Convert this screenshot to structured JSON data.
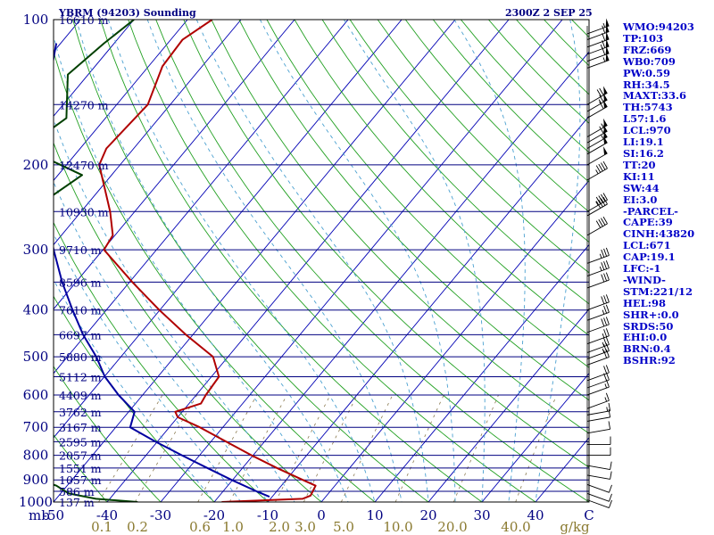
{
  "header": {
    "title": "YBRM (94203) Sounding",
    "time": "2300Z  2 SEP 25"
  },
  "indices": [
    "WMO:94203",
    "TP:103",
    "FRZ:669",
    "WB0:709",
    "PW:0.59",
    "RH:34.5",
    "MAXT:33.6",
    "TH:5743",
    "L57:1.6",
    "LCL:970",
    "LI:19.1",
    "SI:16.2",
    "TT:20",
    "KI:11",
    "SW:44",
    "EI:3.0",
    "-PARCEL-",
    "CAPE:39",
    "CINH:43820",
    "LCL:671",
    "CAP:19.1",
    "LFC:-1",
    "-WIND-",
    "STM:221/12",
    "HEL:98",
    "SHR+:0.0",
    "SRDS:50",
    "EHI:0.0",
    "BRN:0.4",
    "BSHR:92"
  ],
  "chart_data": {
    "type": "line",
    "title": "YBRM (94203) Sounding",
    "xlabel": "",
    "ylabel": "mb",
    "x_axis": {
      "tick_labels": [
        "-50",
        "-40",
        "-30",
        "-20",
        "-10",
        "0",
        "10",
        "20",
        "30",
        "40",
        "C"
      ],
      "tick_values": [
        -50,
        -40,
        -30,
        -20,
        -10,
        0,
        10,
        20,
        30,
        40
      ],
      "unit_label": "C",
      "xlim": [
        -50,
        50
      ]
    },
    "mixing_ratio_axis": {
      "unit_label": "g/kg",
      "tick_labels": [
        "0.1",
        "0.2",
        "0.6",
        "1.0",
        "2.0",
        "3.0",
        "5.0",
        "10.0",
        "20.0",
        "40.0"
      ]
    },
    "y_axis": {
      "scale": "log",
      "ylim": [
        1000,
        100
      ],
      "tick_labels": [
        "100",
        "200",
        "300",
        "400",
        "500",
        "600",
        "700",
        "800",
        "900",
        "1000"
      ],
      "tick_values": [
        100,
        200,
        300,
        400,
        500,
        600,
        700,
        800,
        900,
        1000
      ]
    },
    "height_levels": [
      {
        "p": 100,
        "label": "16610 m"
      },
      {
        "p": 150,
        "label": "14270 m"
      },
      {
        "p": 200,
        "label": "12470 m"
      },
      {
        "p": 250,
        "label": "10930 m"
      },
      {
        "p": 300,
        "label": "9710 m"
      },
      {
        "p": 350,
        "label": "8596 m"
      },
      {
        "p": 400,
        "label": "7610 m"
      },
      {
        "p": 450,
        "label": "6697 m"
      },
      {
        "p": 500,
        "label": "5880 m"
      },
      {
        "p": 550,
        "label": "5112 m"
      },
      {
        "p": 600,
        "label": "4409 m"
      },
      {
        "p": 650,
        "label": "3762 m"
      },
      {
        "p": 700,
        "label": "3167 m"
      },
      {
        "p": 750,
        "label": "2595 m"
      },
      {
        "p": 800,
        "label": "2057 m"
      },
      {
        "p": 850,
        "label": "1551 m"
      },
      {
        "p": 900,
        "label": "1057 m"
      },
      {
        "p": 950,
        "label": "586 m"
      },
      {
        "p": 1000,
        "label": "137 m"
      }
    ],
    "series": [
      {
        "role": "temperature",
        "color": "#b00000",
        "points": [
          {
            "p": 1000,
            "t": -18.6
          },
          {
            "p": 985,
            "t": -4.0
          },
          {
            "p": 970,
            "t": -3.0
          },
          {
            "p": 925,
            "t": -3.6
          },
          {
            "p": 900,
            "t": -6.9
          },
          {
            "p": 850,
            "t": -13.6
          },
          {
            "p": 800,
            "t": -20.3
          },
          {
            "p": 750,
            "t": -27.1
          },
          {
            "p": 700,
            "t": -34.3
          },
          {
            "p": 667,
            "t": -40.0
          },
          {
            "p": 650,
            "t": -41.3
          },
          {
            "p": 625,
            "t": -37.8
          },
          {
            "p": 600,
            "t": -38.2
          },
          {
            "p": 550,
            "t": -38.6
          },
          {
            "p": 500,
            "t": -42.8
          },
          {
            "p": 450,
            "t": -51.3
          },
          {
            "p": 400,
            "t": -60.1
          },
          {
            "p": 350,
            "t": -69.5
          },
          {
            "p": 300,
            "t": -79.8
          },
          {
            "p": 280,
            "t": -80.4
          },
          {
            "p": 250,
            "t": -84.6
          },
          {
            "p": 200,
            "t": -93.9
          },
          {
            "p": 185,
            "t": -95.1
          },
          {
            "p": 150,
            "t": -94.2
          },
          {
            "p": 125,
            "t": -97.4
          },
          {
            "p": 110,
            "t": -97.8
          },
          {
            "p": 100,
            "t": -95.4
          }
        ]
      },
      {
        "role": "dewpoint",
        "color": "#004000",
        "points": [
          {
            "p": 1000,
            "t": -34.3
          },
          {
            "p": 985,
            "t": -42.6
          },
          {
            "p": 960,
            "t": -48.5
          },
          {
            "p": 925,
            "t": -52.0
          },
          {
            "p": 880,
            "t": -59.0
          },
          {
            "p": 830,
            "t": -65.3
          },
          {
            "p": 780,
            "t": -69.7
          },
          {
            "p": 730,
            "t": -72.2
          },
          {
            "p": 700,
            "t": -76.1
          },
          {
            "p": 660,
            "t": -80.5
          },
          {
            "p": 650,
            "t": -106.6
          },
          {
            "p": 600,
            "t": -105.2
          },
          {
            "p": 500,
            "t": -103.2
          },
          {
            "p": 400,
            "t": -103.8
          },
          {
            "p": 310,
            "t": -91.8
          },
          {
            "p": 270,
            "t": -101.5
          },
          {
            "p": 210,
            "t": -95.5
          },
          {
            "p": 195,
            "t": -104.1
          },
          {
            "p": 180,
            "t": -109.8
          },
          {
            "p": 160,
            "t": -107.3
          },
          {
            "p": 130,
            "t": -113.8
          },
          {
            "p": 112,
            "t": -111.9
          },
          {
            "p": 100,
            "t": -110.0
          }
        ]
      },
      {
        "role": "parcel",
        "color": "#0000a0",
        "points": [
          {
            "p": 975,
            "t": -10.5
          },
          {
            "p": 950,
            "t": -13.8
          },
          {
            "p": 900,
            "t": -20.2
          },
          {
            "p": 850,
            "t": -26.6
          },
          {
            "p": 800,
            "t": -33.3
          },
          {
            "p": 750,
            "t": -40.3
          },
          {
            "p": 700,
            "t": -47.3
          },
          {
            "p": 650,
            "t": -48.9
          },
          {
            "p": 600,
            "t": -54.5
          },
          {
            "p": 550,
            "t": -59.9
          },
          {
            "p": 500,
            "t": -64.6
          },
          {
            "p": 450,
            "t": -70.5
          },
          {
            "p": 400,
            "t": -76.3
          },
          {
            "p": 350,
            "t": -82.6
          },
          {
            "p": 300,
            "t": -89.2
          },
          {
            "p": 250,
            "t": -96.5
          },
          {
            "p": 200,
            "t": -104.3
          },
          {
            "p": 150,
            "t": -113.4
          },
          {
            "p": 112,
            "t": -120.8
          }
        ]
      }
    ],
    "wind_barbs": [
      {
        "p": 107,
        "dir": 290,
        "spd": 55
      },
      {
        "p": 110,
        "dir": 290,
        "spd": 60
      },
      {
        "p": 114,
        "dir": 290,
        "spd": 60
      },
      {
        "p": 118,
        "dir": 290,
        "spd": 65
      },
      {
        "p": 122,
        "dir": 290,
        "spd": 60
      },
      {
        "p": 126,
        "dir": 290,
        "spd": 55
      },
      {
        "p": 150,
        "dir": 300,
        "spd": 70
      },
      {
        "p": 155,
        "dir": 300,
        "spd": 65
      },
      {
        "p": 160,
        "dir": 300,
        "spd": 60
      },
      {
        "p": 175,
        "dir": 300,
        "spd": 55
      },
      {
        "p": 180,
        "dir": 300,
        "spd": 60
      },
      {
        "p": 185,
        "dir": 300,
        "spd": 55
      },
      {
        "p": 190,
        "dir": 300,
        "spd": 50
      },
      {
        "p": 200,
        "dir": 300,
        "spd": 50
      },
      {
        "p": 215,
        "dir": 300,
        "spd": 45
      },
      {
        "p": 250,
        "dir": 300,
        "spd": 45
      },
      {
        "p": 255,
        "dir": 300,
        "spd": 40
      },
      {
        "p": 280,
        "dir": 300,
        "spd": 40
      },
      {
        "p": 320,
        "dir": 290,
        "spd": 35
      },
      {
        "p": 340,
        "dir": 290,
        "spd": 35
      },
      {
        "p": 360,
        "dir": 290,
        "spd": 30
      },
      {
        "p": 400,
        "dir": 290,
        "spd": 30
      },
      {
        "p": 420,
        "dir": 290,
        "spd": 25
      },
      {
        "p": 445,
        "dir": 290,
        "spd": 30
      },
      {
        "p": 470,
        "dir": 290,
        "spd": 25
      },
      {
        "p": 490,
        "dir": 290,
        "spd": 25
      },
      {
        "p": 505,
        "dir": 290,
        "spd": 25
      },
      {
        "p": 520,
        "dir": 290,
        "spd": 20
      },
      {
        "p": 560,
        "dir": 290,
        "spd": 20
      },
      {
        "p": 580,
        "dir": 290,
        "spd": 20
      },
      {
        "p": 600,
        "dir": 290,
        "spd": 15
      },
      {
        "p": 640,
        "dir": 290,
        "spd": 15
      },
      {
        "p": 660,
        "dir": 280,
        "spd": 15
      },
      {
        "p": 680,
        "dir": 280,
        "spd": 10
      },
      {
        "p": 720,
        "dir": 280,
        "spd": 10
      },
      {
        "p": 760,
        "dir": 270,
        "spd": 10
      },
      {
        "p": 800,
        "dir": 270,
        "spd": 10
      },
      {
        "p": 840,
        "dir": 260,
        "spd": 10
      },
      {
        "p": 880,
        "dir": 260,
        "spd": 10
      },
      {
        "p": 920,
        "dir": 250,
        "spd": 10
      },
      {
        "p": 960,
        "dir": 250,
        "spd": 10
      },
      {
        "p": 990,
        "dir": 250,
        "spd": 10
      }
    ],
    "grid": true,
    "legend": "right"
  }
}
